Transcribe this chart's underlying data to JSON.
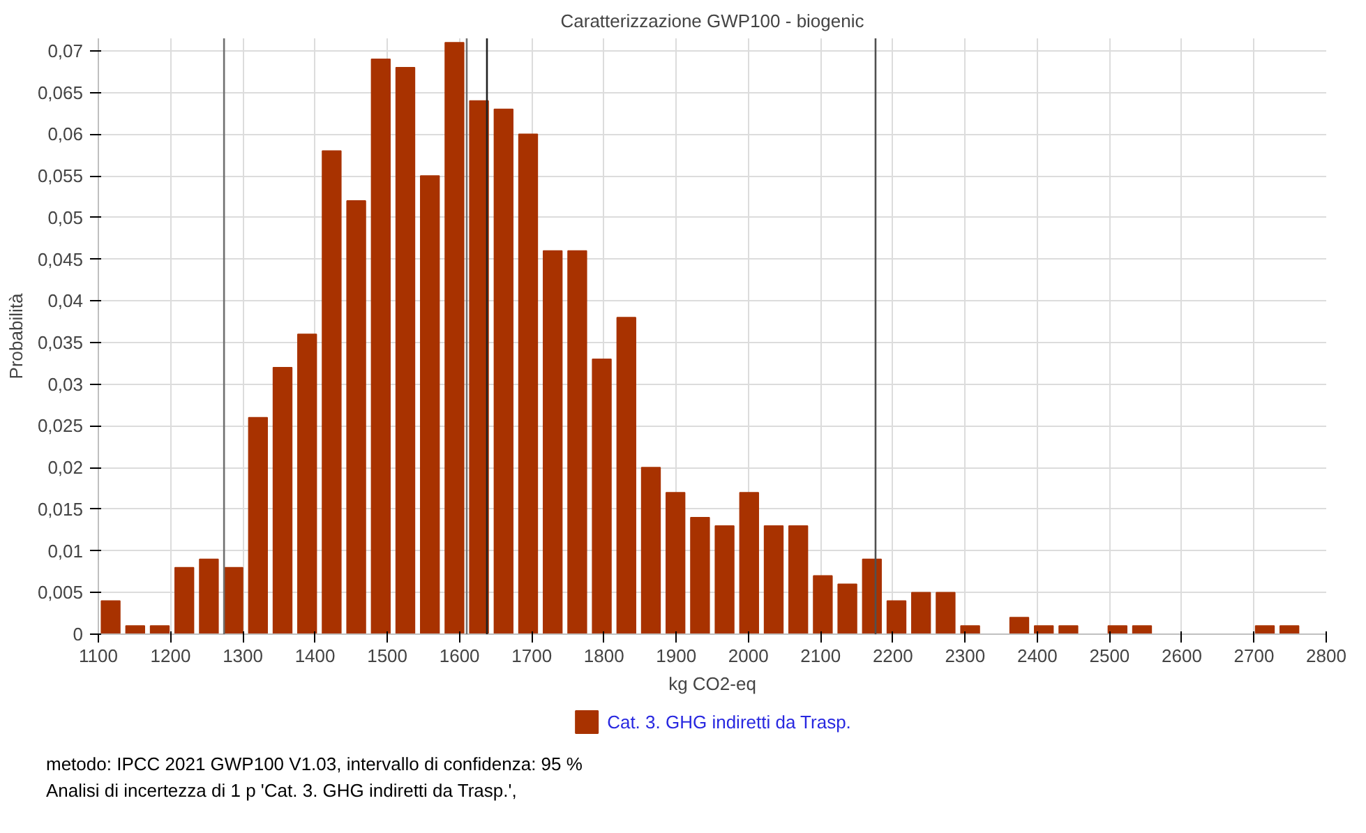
{
  "chart_data": {
    "type": "histogram",
    "title": "Caratterizzazione GWP100 - biogenic",
    "xlabel": "kg CO2-eq",
    "ylabel": "Probabilità",
    "bins": [
      1100,
      1134,
      1168,
      1202,
      1236,
      1270,
      1304,
      1338,
      1372,
      1406,
      1440,
      1474,
      1508,
      1542,
      1576,
      1610,
      1644,
      1678,
      1712,
      1746,
      1780,
      1814,
      1848,
      1882,
      1916,
      1950,
      1984,
      2018,
      2052,
      2086,
      2120,
      2154,
      2188,
      2222,
      2256,
      2290,
      2324,
      2358,
      2392,
      2426,
      2460,
      2494,
      2528,
      2562,
      2596,
      2630,
      2664,
      2698,
      2732,
      2766,
      2800
    ],
    "series": [
      {
        "name": "Cat. 3. GHG indiretti da Trasp.",
        "color": "#a83200",
        "values": [
          0.004,
          0.001,
          0.001,
          0.008,
          0.009,
          0.008,
          0.026,
          0.032,
          0.036,
          0.058,
          0.052,
          0.069,
          0.068,
          0.055,
          0.071,
          0.064,
          0.063,
          0.06,
          0.046,
          0.046,
          0.033,
          0.038,
          0.02,
          0.017,
          0.014,
          0.013,
          0.017,
          0.013,
          0.013,
          0.007,
          0.006,
          0.009,
          0.004,
          0.005,
          0.005,
          0.001,
          0,
          0.002,
          0.001,
          0.001,
          0,
          0.001,
          0.001,
          0,
          0,
          0,
          0,
          0.001,
          0.001,
          0
        ]
      }
    ],
    "xlim": [
      1100,
      2800
    ],
    "ylim": [
      0,
      0.0715
    ],
    "xticks": [
      1100,
      1200,
      1300,
      1400,
      1500,
      1600,
      1700,
      1800,
      1900,
      2000,
      2100,
      2200,
      2300,
      2400,
      2500,
      2600,
      2700,
      2800
    ],
    "yticks": [
      0,
      {
        "value": 0.005,
        "label": "0,005"
      },
      {
        "value": 0.01,
        "label": "0,01"
      },
      {
        "value": 0.015,
        "label": "0,015"
      },
      {
        "value": 0.02,
        "label": "0,02"
      },
      {
        "value": 0.025,
        "label": "0,025"
      },
      {
        "value": 0.03,
        "label": "0,03"
      },
      {
        "value": 0.035,
        "label": "0,035"
      },
      {
        "value": 0.04,
        "label": "0,04"
      },
      {
        "value": 0.045,
        "label": "0,045"
      },
      {
        "value": 0.05,
        "label": "0,05"
      },
      {
        "value": 0.055,
        "label": "0,055"
      },
      {
        "value": 0.06,
        "label": "0,06"
      },
      {
        "value": 0.065,
        "label": "0,065"
      },
      {
        "value": 0.07,
        "label": "0,07"
      }
    ],
    "ref_lines": [
      {
        "axis": "x",
        "value": 1274,
        "color": "#707070"
      },
      {
        "axis": "x",
        "value": 1610,
        "color": "#707070"
      },
      {
        "axis": "x",
        "value": 1638,
        "color": "#202020"
      },
      {
        "axis": "x",
        "value": 2176,
        "color": "#505050"
      }
    ],
    "grid": true,
    "legend": "bottom",
    "annotations": [
      "metodo: IPCC 2021 GWP100 V1.03, intervallo di confidenza: 95 %",
      "Analisi di incertezza di 1 p 'Cat. 3. GHG indiretti da Trasp.',"
    ]
  }
}
